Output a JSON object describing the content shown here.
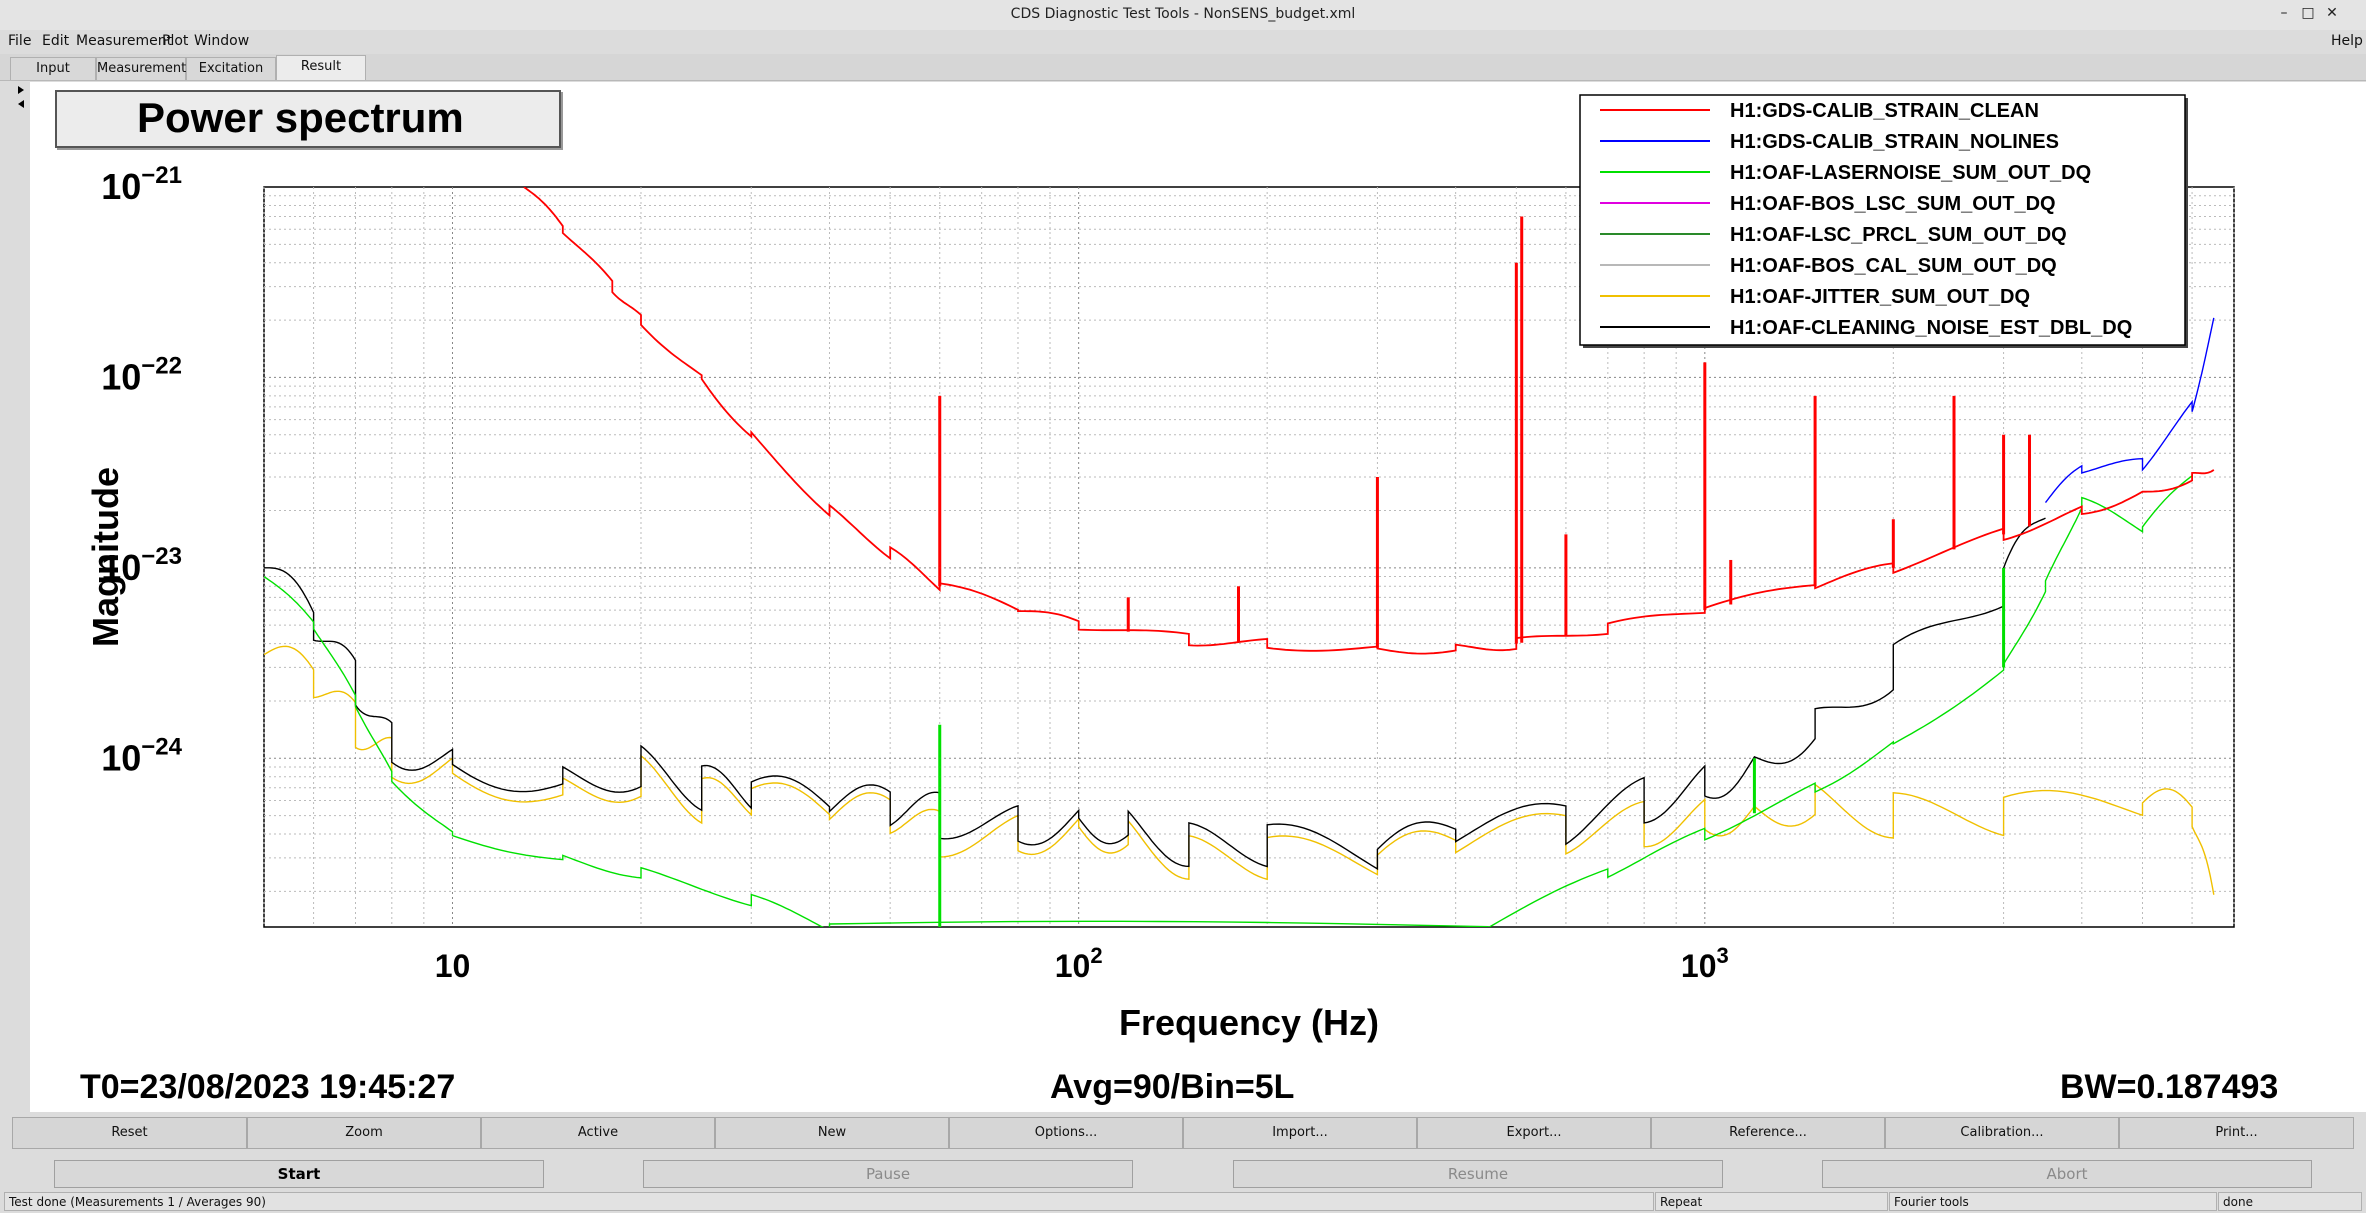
{
  "window": {
    "title": "CDS Diagnostic Test Tools - NonSENS_budget.xml",
    "minimize": "–",
    "maximize": "□",
    "close": "✕"
  },
  "menubar": {
    "items": [
      "File",
      "Edit",
      "Measurement",
      "Plot",
      "Window"
    ],
    "help": "Help"
  },
  "tabs": [
    "Input",
    "Measurement",
    "Excitation",
    "Result"
  ],
  "active_tab": "Result",
  "plot": {
    "title": "Power spectrum",
    "footer_left": "T0=23/08/2023 19:45:27",
    "footer_center": "Avg=90/Bin=5L",
    "footer_right": "BW=0.187493"
  },
  "chart_data": {
    "type": "line",
    "xlabel": "Frequency (Hz)",
    "ylabel": "Magnitude",
    "x_scale": "log",
    "y_scale": "log",
    "xlim": [
      5,
      7000
    ],
    "ylim": [
      1.3e-25,
      1e-21
    ],
    "grid": true,
    "legend_position": "top-right",
    "x_ticks": [
      {
        "value": 10,
        "mant": "10",
        "exp": ""
      },
      {
        "value": 100,
        "mant": "10",
        "exp": "2"
      },
      {
        "value": 1000,
        "mant": "10",
        "exp": "3"
      }
    ],
    "y_ticks": [
      {
        "value": 1e-21,
        "mant": "10",
        "exp": "−21"
      },
      {
        "value": 1e-22,
        "mant": "10",
        "exp": "−22"
      },
      {
        "value": 1e-23,
        "mant": "10",
        "exp": "−23"
      },
      {
        "value": 1e-24,
        "mant": "10",
        "exp": "−24"
      }
    ],
    "series": [
      {
        "name": "H1:GDS-CALIB_STRAIN_CLEAN",
        "color": "#ff0000",
        "x": [
          13,
          15,
          18,
          20,
          25,
          30,
          40,
          50,
          60,
          80,
          100,
          150,
          200,
          300,
          400,
          500,
          700,
          1000,
          1500,
          2000,
          3000,
          4000,
          5000,
          6000,
          6500
        ],
        "y": [
          1e-21,
          6e-22,
          3e-22,
          2e-22,
          1e-22,
          5e-23,
          2e-23,
          1.2e-23,
          8e-24,
          6e-24,
          5e-24,
          4.2e-24,
          4e-24,
          3.8e-24,
          3.8e-24,
          4e-24,
          4.8e-24,
          6e-24,
          8e-24,
          1e-23,
          1.5e-23,
          2e-23,
          2.5e-23,
          3e-23,
          3.5e-23
        ]
      },
      {
        "name": "H1:GDS-CALIB_STRAIN_NOLINES",
        "color": "#0000ff",
        "x": [
          3500,
          4000,
          5000,
          6000,
          6500
        ],
        "y": [
          2.2e-23,
          3.3e-23,
          3.5e-23,
          7e-23,
          2e-22
        ]
      },
      {
        "name": "H1:OAF-LASERNOISE_SUM_OUT_DQ",
        "color": "#00e000",
        "x": [
          5,
          6,
          7,
          8,
          10,
          15,
          20,
          30,
          40,
          450,
          700,
          1000,
          1500,
          2000,
          3000,
          3500,
          4000,
          5000,
          6000
        ],
        "y": [
          9e-24,
          5e-24,
          2e-24,
          8e-25,
          4e-25,
          3e-25,
          2.5e-25,
          1.8e-25,
          1.3e-25,
          1.3e-25,
          2.5e-25,
          4e-25,
          7e-25,
          1.2e-24,
          3e-24,
          8e-24,
          2.2e-23,
          1.6e-23,
          3e-23
        ]
      },
      {
        "name": "H1:OAF-BOS_LSC_SUM_OUT_DQ",
        "color": "#e000e0",
        "x": [],
        "y": []
      },
      {
        "name": "H1:OAF-LSC_PRCL_SUM_OUT_DQ",
        "color": "#2a8a2a",
        "x": [],
        "y": []
      },
      {
        "name": "H1:OAF-BOS_CAL_SUM_OUT_DQ",
        "color": "#b8b8b8",
        "x": [],
        "y": []
      },
      {
        "name": "H1:OAF-JITTER_SUM_OUT_DQ",
        "color": "#f0c000",
        "x": [
          5,
          6,
          7,
          8,
          10,
          15,
          20,
          25,
          30,
          40,
          50,
          60,
          80,
          100,
          120,
          150,
          200,
          300,
          400,
          600,
          800,
          1000,
          1200,
          1500,
          2000,
          3000,
          5000,
          6000,
          6500
        ],
        "y": [
          3.5e-24,
          2.5e-24,
          1.5e-24,
          1e-24,
          9e-25,
          7e-25,
          8e-25,
          6e-25,
          6e-25,
          5e-25,
          5e-25,
          4e-25,
          4e-25,
          4.5e-25,
          4e-25,
          3e-25,
          3e-25,
          2.8e-25,
          3.5e-25,
          4e-25,
          4.5e-25,
          5e-25,
          5.5e-25,
          6e-25,
          5e-25,
          5e-25,
          5.5e-25,
          5e-25,
          1.5e-25
        ]
      },
      {
        "name": "H1:OAF-CLEANING_NOISE_EST_DBL_DQ",
        "color": "#000000",
        "x": [
          5,
          6,
          7,
          8,
          10,
          15,
          20,
          25,
          30,
          40,
          50,
          60,
          80,
          100,
          120,
          150,
          200,
          300,
          400,
          600,
          800,
          1000,
          1200,
          1500,
          2000,
          3000,
          3500
        ],
        "y": [
          1e-23,
          5e-24,
          2.5e-24,
          1.2e-24,
          1e-24,
          8e-25,
          9e-25,
          7e-25,
          6.5e-25,
          5.5e-25,
          5.5e-25,
          5e-25,
          4.5e-25,
          5e-25,
          4.5e-25,
          3.5e-25,
          3.5e-25,
          3e-25,
          4e-25,
          4.5e-25,
          6e-25,
          7.5e-25,
          1e-24,
          1.5e-24,
          3e-24,
          8e-24,
          2e-23
        ]
      }
    ],
    "peaks": [
      {
        "series": 0,
        "x": 60,
        "y": 8e-23
      },
      {
        "series": 0,
        "x": 120,
        "y": 7e-24
      },
      {
        "series": 0,
        "x": 180,
        "y": 8e-24
      },
      {
        "series": 0,
        "x": 300,
        "y": 3e-23
      },
      {
        "series": 0,
        "x": 500,
        "y": 4e-22
      },
      {
        "series": 0,
        "x": 510,
        "y": 7e-22
      },
      {
        "series": 0,
        "x": 600,
        "y": 1.5e-23
      },
      {
        "series": 0,
        "x": 1000,
        "y": 1.2e-22
      },
      {
        "series": 0,
        "x": 1100,
        "y": 1.1e-23
      },
      {
        "series": 0,
        "x": 1500,
        "y": 8e-23
      },
      {
        "series": 0,
        "x": 2000,
        "y": 1.8e-23
      },
      {
        "series": 0,
        "x": 2500,
        "y": 8e-23
      },
      {
        "series": 0,
        "x": 3000,
        "y": 5e-23
      },
      {
        "series": 0,
        "x": 3300,
        "y": 5e-23
      },
      {
        "series": 2,
        "x": 60,
        "y": 1.5e-24
      },
      {
        "series": 2,
        "x": 1200,
        "y": 1e-24
      },
      {
        "series": 2,
        "x": 3000,
        "y": 1e-23
      }
    ]
  },
  "buttons_row1": [
    "Reset",
    "Zoom",
    "Active",
    "New",
    "Options...",
    "Import...",
    "Export...",
    "Reference...",
    "Calibration...",
    "Print..."
  ],
  "buttons_row2": {
    "start": "Start",
    "pause": "Pause",
    "resume": "Resume",
    "abort": "Abort"
  },
  "statusbar": {
    "message": "Test done (Measurements 1 / Averages 90)",
    "repeat": "Repeat",
    "tool": "Fourier tools",
    "state": "done"
  },
  "colors": {
    "window_bg": "#dcdcdc",
    "plot_bg": "#ffffff",
    "disabled_text": "#8a8a8a"
  }
}
